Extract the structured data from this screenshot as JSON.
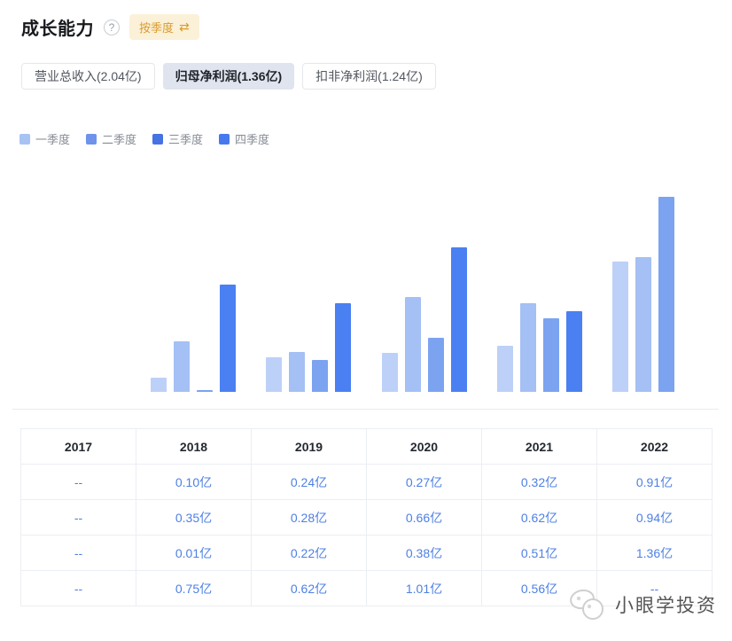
{
  "header": {
    "title": "成长能力",
    "help_glyph": "?",
    "period_toggle": {
      "label": "按季度",
      "icon": "⇄",
      "bg_color": "#fbf1d8",
      "text_color": "#db9b2e"
    }
  },
  "tabs": [
    {
      "label": "营业总收入(2.04亿)",
      "selected": false
    },
    {
      "label": "归母净利润(1.36亿)",
      "selected": true
    },
    {
      "label": "扣非净利润(1.24亿)",
      "selected": false
    }
  ],
  "legend": [
    {
      "label": "一季度",
      "color": "#a6c3f4"
    },
    {
      "label": "二季度",
      "color": "#6d93eb"
    },
    {
      "label": "三季度",
      "color": "#4672e4"
    },
    {
      "label": "四季度",
      "color": "#4679ee"
    }
  ],
  "chart_data": {
    "type": "bar",
    "title": "归母净利润(1.36亿) 按季度",
    "categories": [
      "2017",
      "2018",
      "2019",
      "2020",
      "2021",
      "2022"
    ],
    "series": [
      {
        "name": "一季度",
        "color": "#bdd0f7",
        "values": [
          null,
          0.1,
          0.24,
          0.27,
          0.32,
          0.91
        ]
      },
      {
        "name": "二季度",
        "color": "#a4c0f4",
        "values": [
          null,
          0.35,
          0.28,
          0.66,
          0.62,
          0.94
        ]
      },
      {
        "name": "三季度",
        "color": "#7ba3f0",
        "values": [
          null,
          0.01,
          0.22,
          0.38,
          0.51,
          1.36
        ]
      },
      {
        "name": "四季度",
        "color": "#4a80f2",
        "values": [
          null,
          0.75,
          0.62,
          1.01,
          0.56,
          null
        ]
      }
    ],
    "unit": "亿",
    "ylim": [
      0,
      1.36
    ],
    "grid": false,
    "legend_position": "top-left",
    "xlabel": "",
    "ylabel": ""
  },
  "table": {
    "headers": [
      "2017",
      "2018",
      "2019",
      "2020",
      "2021",
      "2022"
    ],
    "rows": [
      [
        "--",
        "0.10亿",
        "0.24亿",
        "0.27亿",
        "0.32亿",
        "0.91亿"
      ],
      [
        "--",
        "0.35亿",
        "0.28亿",
        "0.66亿",
        "0.62亿",
        "0.94亿"
      ],
      [
        "--",
        "0.01亿",
        "0.22亿",
        "0.38亿",
        "0.51亿",
        "1.36亿"
      ],
      [
        "--",
        "0.75亿",
        "0.62亿",
        "1.01亿",
        "0.56亿",
        "--"
      ]
    ],
    "value_color": "#4e80e4"
  },
  "watermark": {
    "text": "小眼学投资"
  },
  "colors": {
    "accent_blue": "#4e80e4",
    "selected_tab_bg": "#dfe4ee",
    "badge_bg": "#fbf1d8",
    "badge_text": "#db9b2e",
    "divider": "#e8eaee",
    "table_border": "#ebeef3"
  }
}
